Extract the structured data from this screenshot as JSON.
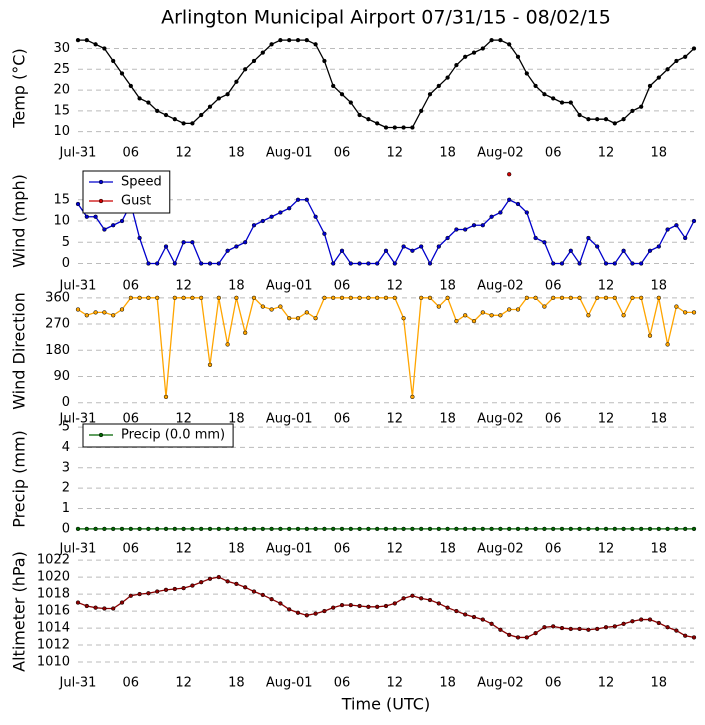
{
  "chart_data": [
    {
      "type": "line",
      "title": "Arlington Municipal Airport 07/31/15 - 08/02/15",
      "ylabel": "Temp (°C)",
      "color": "#000000",
      "x": [
        0,
        1,
        2,
        3,
        4,
        5,
        6,
        7,
        8,
        9,
        10,
        11,
        12,
        13,
        14,
        15,
        16,
        17,
        18,
        19,
        20,
        21,
        22,
        23,
        24,
        25,
        26,
        27,
        28,
        29,
        30,
        31,
        32,
        33,
        34,
        35,
        36,
        37,
        38,
        39,
        40,
        41,
        42,
        43,
        44,
        45,
        46,
        47,
        48,
        49,
        50,
        51,
        52,
        53,
        54,
        55,
        56,
        57,
        58,
        59,
        60,
        61,
        62,
        63,
        64,
        65,
        66,
        67,
        68,
        69,
        70
      ],
      "values": [
        32,
        32,
        31,
        30,
        27,
        24,
        21,
        18,
        17,
        15,
        14,
        13,
        12,
        12,
        14,
        16,
        18,
        19,
        22,
        25,
        27,
        29,
        31,
        32,
        32,
        32,
        32,
        31,
        27,
        21,
        19,
        17,
        14,
        13,
        12,
        11,
        11,
        11,
        11,
        15,
        19,
        21,
        23,
        26,
        28,
        29,
        30,
        32,
        32,
        31,
        28,
        24,
        21,
        19,
        18,
        17,
        17,
        14,
        13,
        13,
        13,
        12,
        13,
        15,
        16,
        21,
        23,
        25,
        27,
        28,
        30
      ],
      "xlim": [
        0,
        70
      ],
      "xticks": [
        {
          "value": 0,
          "label": "Jul-31"
        },
        {
          "value": 6,
          "label": "06"
        },
        12,
        18,
        {
          "value": 24,
          "label": "Aug-01"
        },
        {
          "value": 30,
          "label": "06"
        },
        {
          "value": 36,
          "label": "12"
        },
        {
          "value": 42,
          "label": "18"
        },
        {
          "value": 48,
          "label": "Aug-02"
        },
        {
          "value": 54,
          "label": "06"
        },
        {
          "value": 60,
          "label": "12"
        },
        {
          "value": 66,
          "label": "18"
        }
      ],
      "ylim": [
        8,
        33
      ],
      "yticks": [
        10,
        15,
        20,
        25,
        30
      ],
      "grid": true
    },
    {
      "type": "line",
      "ylabel": "Wind (mph)",
      "legend": "upper left",
      "x": [
        0,
        1,
        2,
        3,
        4,
        5,
        6,
        7,
        8,
        9,
        10,
        11,
        12,
        13,
        14,
        15,
        16,
        17,
        18,
        19,
        20,
        21,
        22,
        23,
        24,
        25,
        26,
        27,
        28,
        29,
        30,
        31,
        32,
        33,
        34,
        35,
        36,
        37,
        38,
        39,
        40,
        41,
        42,
        43,
        44,
        45,
        46,
        47,
        48,
        49,
        50,
        51,
        52,
        53,
        54,
        55,
        56,
        57,
        58,
        59,
        60,
        61,
        62,
        63,
        64,
        65,
        66,
        67,
        68,
        69,
        70
      ],
      "series": [
        {
          "name": "Speed",
          "color": "#0000cc",
          "values": [
            14,
            11,
            11,
            8,
            9,
            10,
            14,
            6,
            0,
            0,
            4,
            0,
            5,
            5,
            0,
            0,
            0,
            3,
            4,
            5,
            9,
            10,
            11,
            12,
            13,
            15,
            15,
            11,
            7,
            0,
            3,
            0,
            0,
            0,
            0,
            3,
            0,
            4,
            3,
            4,
            0,
            4,
            6,
            8,
            8,
            9,
            9,
            11,
            12,
            15,
            14,
            12,
            6,
            5,
            0,
            0,
            3,
            0,
            6,
            4,
            0,
            0,
            3,
            0,
            0,
            3,
            4,
            8,
            9,
            6,
            10
          ]
        },
        {
          "name": "Gust",
          "color": "#cc0000",
          "values": [
            null,
            null,
            null,
            null,
            null,
            null,
            null,
            null,
            null,
            null,
            null,
            null,
            null,
            null,
            null,
            null,
            null,
            null,
            null,
            null,
            null,
            null,
            null,
            null,
            null,
            null,
            null,
            null,
            null,
            null,
            null,
            null,
            null,
            null,
            null,
            null,
            null,
            null,
            null,
            null,
            null,
            null,
            null,
            null,
            null,
            null,
            null,
            null,
            null,
            21,
            null,
            null,
            null,
            null,
            null,
            null,
            null,
            null,
            null,
            null,
            null,
            null,
            null,
            null,
            null,
            null,
            null,
            null,
            null,
            null,
            null
          ]
        }
      ],
      "xlim": [
        0,
        70
      ],
      "xticks": [
        {
          "value": 0,
          "label": "Jul-31"
        },
        {
          "value": 6,
          "label": "06"
        },
        12,
        18,
        {
          "value": 24,
          "label": "Aug-01"
        },
        {
          "value": 30,
          "label": "06"
        },
        {
          "value": 36,
          "label": "12"
        },
        {
          "value": 42,
          "label": "18"
        },
        {
          "value": 48,
          "label": "Aug-02"
        },
        {
          "value": 54,
          "label": "06"
        },
        {
          "value": 60,
          "label": "12"
        },
        {
          "value": 66,
          "label": "18"
        }
      ],
      "ylim": [
        -2,
        22
      ],
      "yticks": [
        0,
        5,
        10,
        15
      ],
      "grid": true
    },
    {
      "type": "line",
      "ylabel": "Wind Direction",
      "color": "#ffa500",
      "x": [
        0,
        1,
        2,
        3,
        4,
        5,
        6,
        7,
        8,
        9,
        10,
        11,
        12,
        13,
        14,
        15,
        16,
        17,
        18,
        19,
        20,
        21,
        22,
        23,
        24,
        25,
        26,
        27,
        28,
        29,
        30,
        31,
        32,
        33,
        34,
        35,
        36,
        37,
        38,
        39,
        40,
        41,
        42,
        43,
        44,
        45,
        46,
        47,
        48,
        49,
        50,
        51,
        52,
        53,
        54,
        55,
        56,
        57,
        58,
        59,
        60,
        61,
        62,
        63,
        64,
        65,
        66,
        67,
        68,
        69,
        70
      ],
      "values": [
        320,
        300,
        310,
        310,
        300,
        320,
        360,
        360,
        360,
        360,
        20,
        360,
        360,
        360,
        360,
        130,
        360,
        200,
        360,
        240,
        360,
        330,
        320,
        330,
        290,
        290,
        310,
        290,
        360,
        360,
        360,
        360,
        360,
        360,
        360,
        360,
        360,
        290,
        20,
        360,
        360,
        330,
        360,
        280,
        300,
        280,
        310,
        300,
        300,
        320,
        320,
        360,
        360,
        330,
        360,
        360,
        360,
        360,
        300,
        360,
        360,
        360,
        300,
        360,
        360,
        230,
        360,
        200,
        330,
        310,
        310
      ],
      "xlim": [
        0,
        70
      ],
      "xticks": [
        {
          "value": 0,
          "label": "Jul-31"
        },
        {
          "value": 6,
          "label": "06"
        },
        12,
        18,
        {
          "value": 24,
          "label": "Aug-01"
        },
        {
          "value": 30,
          "label": "06"
        },
        {
          "value": 36,
          "label": "12"
        },
        {
          "value": 42,
          "label": "18"
        },
        {
          "value": 48,
          "label": "Aug-02"
        },
        {
          "value": 54,
          "label": "06"
        },
        {
          "value": 60,
          "label": "12"
        },
        {
          "value": 66,
          "label": "18"
        }
      ],
      "ylim": [
        -25,
        380
      ],
      "yticks": [
        0,
        90,
        180,
        270,
        360
      ],
      "grid": true
    },
    {
      "type": "line",
      "ylabel": "Precip (mm)",
      "legend": "upper left",
      "x": [
        0,
        1,
        2,
        3,
        4,
        5,
        6,
        7,
        8,
        9,
        10,
        11,
        12,
        13,
        14,
        15,
        16,
        17,
        18,
        19,
        20,
        21,
        22,
        23,
        24,
        25,
        26,
        27,
        28,
        29,
        30,
        31,
        32,
        33,
        34,
        35,
        36,
        37,
        38,
        39,
        40,
        41,
        42,
        43,
        44,
        45,
        46,
        47,
        48,
        49,
        50,
        51,
        52,
        53,
        54,
        55,
        56,
        57,
        58,
        59,
        60,
        61,
        62,
        63,
        64,
        65,
        66,
        67,
        68,
        69,
        70
      ],
      "series": [
        {
          "name": "Precip (0.0 mm)",
          "color": "#006400",
          "values": [
            0,
            0,
            0,
            0,
            0,
            0,
            0,
            0,
            0,
            0,
            0,
            0,
            0,
            0,
            0,
            0,
            0,
            0,
            0,
            0,
            0,
            0,
            0,
            0,
            0,
            0,
            0,
            0,
            0,
            0,
            0,
            0,
            0,
            0,
            0,
            0,
            0,
            0,
            0,
            0,
            0,
            0,
            0,
            0,
            0,
            0,
            0,
            0,
            0,
            0,
            0,
            0,
            0,
            0,
            0,
            0,
            0,
            0,
            0,
            0,
            0,
            0,
            0,
            0,
            0,
            0,
            0,
            0,
            0,
            0,
            0
          ]
        }
      ],
      "xlim": [
        0,
        70
      ],
      "xticks": [
        {
          "value": 0,
          "label": "Jul-31"
        },
        {
          "value": 6,
          "label": "06"
        },
        12,
        18,
        {
          "value": 24,
          "label": "Aug-01"
        },
        {
          "value": 30,
          "label": "06"
        },
        {
          "value": 36,
          "label": "12"
        },
        {
          "value": 42,
          "label": "18"
        },
        {
          "value": 48,
          "label": "Aug-02"
        },
        {
          "value": 54,
          "label": "06"
        },
        {
          "value": 60,
          "label": "12"
        },
        {
          "value": 66,
          "label": "18"
        }
      ],
      "ylim": [
        -0.3,
        5.2
      ],
      "yticks": [
        0,
        1,
        2,
        3,
        4,
        5
      ],
      "grid": true
    },
    {
      "type": "line",
      "ylabel": "Altimeter (hPa)",
      "xlabel": "Time (UTC)",
      "color": "#8b0000",
      "x": [
        0,
        1,
        2,
        3,
        4,
        5,
        6,
        7,
        8,
        9,
        10,
        11,
        12,
        13,
        14,
        15,
        16,
        17,
        18,
        19,
        20,
        21,
        22,
        23,
        24,
        25,
        26,
        27,
        28,
        29,
        30,
        31,
        32,
        33,
        34,
        35,
        36,
        37,
        38,
        39,
        40,
        41,
        42,
        43,
        44,
        45,
        46,
        47,
        48,
        49,
        50,
        51,
        52,
        53,
        54,
        55,
        56,
        57,
        58,
        59,
        60,
        61,
        62,
        63,
        64,
        65,
        66,
        67,
        68,
        69,
        70
      ],
      "values": [
        1017,
        1016.6,
        1016.4,
        1016.3,
        1016.3,
        1017,
        1017.8,
        1018,
        1018.1,
        1018.3,
        1018.5,
        1018.6,
        1018.7,
        1019,
        1019.4,
        1019.8,
        1020,
        1019.5,
        1019.2,
        1018.8,
        1018.3,
        1017.9,
        1017.4,
        1016.9,
        1016.2,
        1015.8,
        1015.5,
        1015.7,
        1016,
        1016.4,
        1016.7,
        1016.7,
        1016.6,
        1016.5,
        1016.5,
        1016.6,
        1016.9,
        1017.5,
        1017.8,
        1017.5,
        1017.3,
        1016.9,
        1016.4,
        1016,
        1015.6,
        1015.3,
        1015,
        1014.5,
        1013.8,
        1013.2,
        1012.9,
        1012.9,
        1013.4,
        1014.1,
        1014.2,
        1014,
        1013.9,
        1013.9,
        1013.8,
        1013.9,
        1014.1,
        1014.2,
        1014.5,
        1014.8,
        1015,
        1015,
        1014.6,
        1014.1,
        1013.7,
        1013.1,
        1012.9
      ],
      "xlim": [
        0,
        70
      ],
      "xticks": [
        {
          "value": 0,
          "label": "Jul-31"
        },
        {
          "value": 6,
          "label": "06"
        },
        12,
        18,
        {
          "value": 24,
          "label": "Aug-01"
        },
        {
          "value": 30,
          "label": "06"
        },
        {
          "value": 36,
          "label": "12"
        },
        {
          "value": 42,
          "label": "18"
        },
        {
          "value": 48,
          "label": "Aug-02"
        },
        {
          "value": 54,
          "label": "06"
        },
        {
          "value": 60,
          "label": "12"
        },
        {
          "value": 66,
          "label": "18"
        }
      ],
      "ylim": [
        1009.3,
        1022.6
      ],
      "yticks": [
        1010,
        1012,
        1014,
        1016,
        1018,
        1020,
        1022
      ],
      "grid": true
    }
  ]
}
